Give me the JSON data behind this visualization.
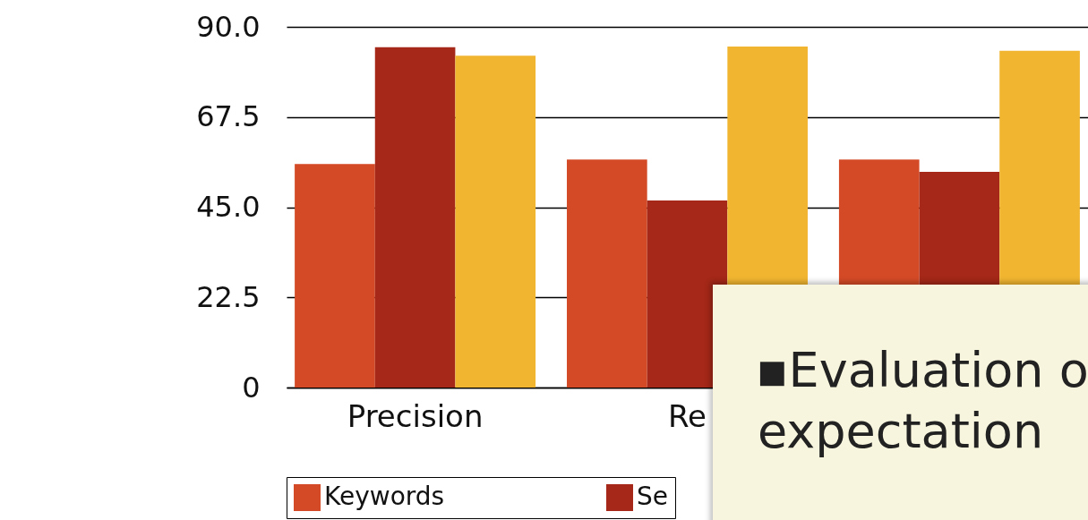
{
  "chart_data": {
    "type": "bar",
    "categories": [
      "Precision",
      "Re",
      null
    ],
    "series": [
      {
        "name": "Keywords",
        "color": "#d44a26",
        "values": [
          55.8,
          56.9,
          56.9
        ]
      },
      {
        "name": "Se",
        "color": "#a52818",
        "values": [
          84.9,
          46.7,
          53.8
        ]
      },
      {
        "color": "#f1b530",
        "values": [
          82.8,
          85.1,
          84.0
        ]
      }
    ],
    "ylim": [
      0,
      90
    ],
    "yticks": [
      0,
      22.5,
      {
        "value": 45,
        "label": "45.0"
      },
      67.5,
      {
        "value": 90,
        "label": "90.0"
      }
    ],
    "grid": "y",
    "legend": "bottom",
    "annotations": [
      "▪Evaluation o",
      "expectation"
    ]
  }
}
